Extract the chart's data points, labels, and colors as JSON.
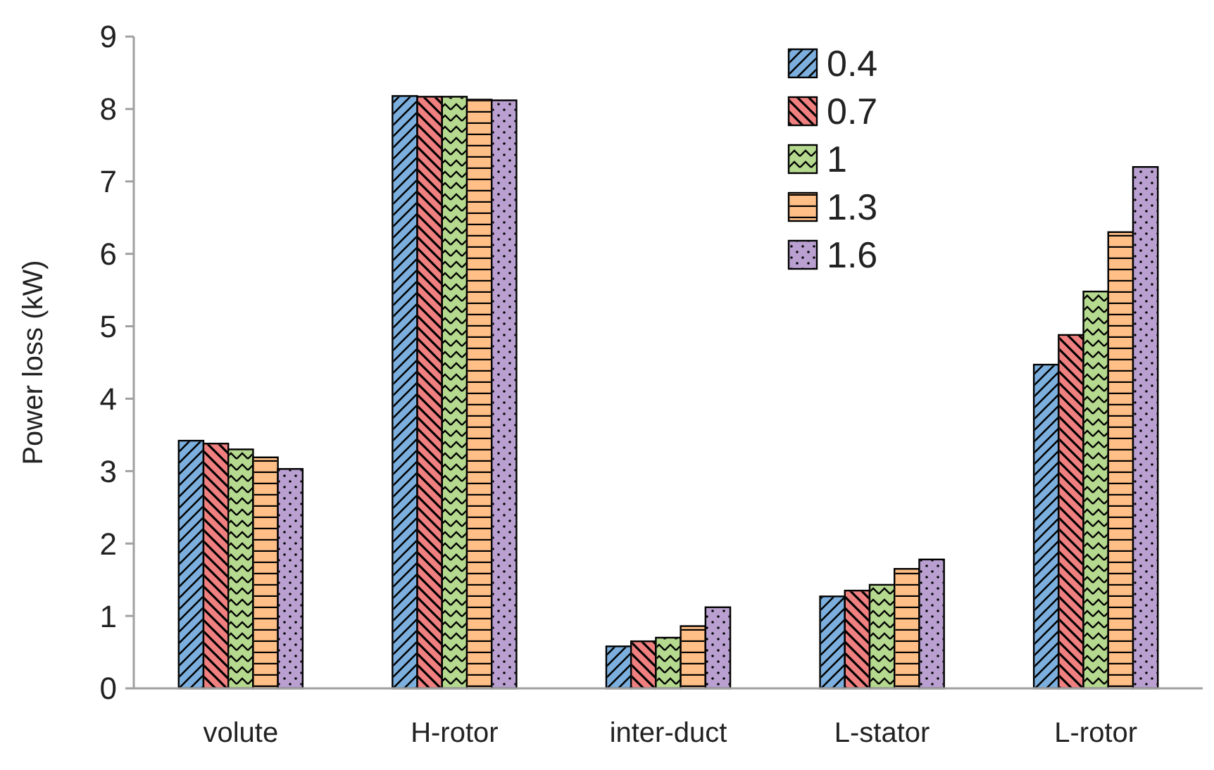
{
  "chart_data": {
    "type": "bar",
    "ylabel": "Power loss (kW)",
    "categories": [
      "volute",
      "H-rotor",
      "inter-duct",
      "L-stator",
      "L-rotor"
    ],
    "series": [
      {
        "name": "0.4",
        "color": "#7cafdd",
        "values": [
          3.42,
          8.18,
          0.58,
          1.27,
          4.47
        ]
      },
      {
        "name": "0.7",
        "color": "#f08080",
        "values": [
          3.38,
          8.17,
          0.65,
          1.35,
          4.88
        ]
      },
      {
        "name": "1",
        "color": "#b5d98f",
        "values": [
          3.3,
          8.17,
          0.7,
          1.43,
          5.48
        ]
      },
      {
        "name": "1.3",
        "color": "#ffbf86",
        "values": [
          3.19,
          8.13,
          0.86,
          1.65,
          6.3
        ]
      },
      {
        "name": "1.6",
        "color": "#b9a0d0",
        "values": [
          3.03,
          8.12,
          1.12,
          1.78,
          7.2
        ]
      }
    ],
    "ylim": [
      0,
      9
    ],
    "yticks": [
      0,
      1,
      2,
      3,
      4,
      5,
      6,
      7,
      8,
      9
    ],
    "grid": false,
    "legend": "top right"
  }
}
